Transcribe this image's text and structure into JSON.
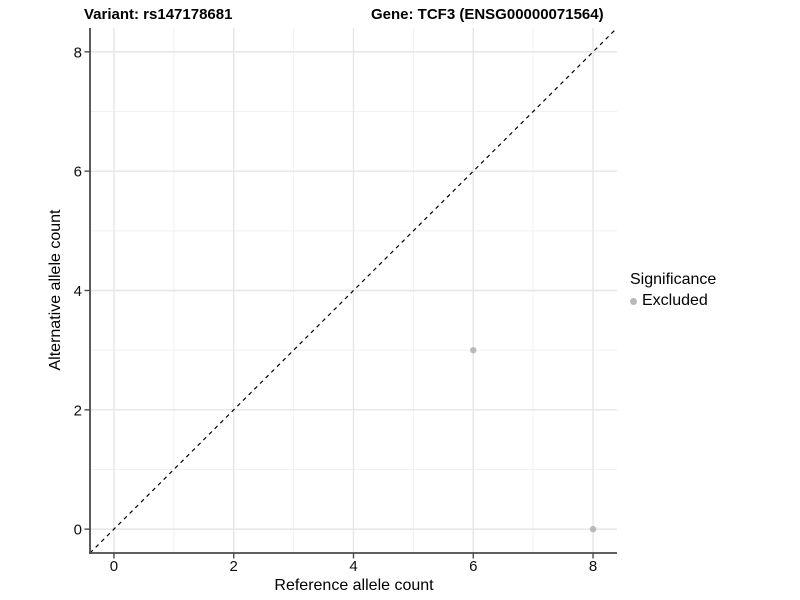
{
  "header": {
    "variant_title": "Variant: rs147178681",
    "gene_title": "Gene: TCF3 (ENSG00000071564)"
  },
  "chart_data": {
    "type": "scatter",
    "xlabel": "Reference allele count",
    "ylabel": "Alternative allele count",
    "xlim": [
      -0.4,
      8.4
    ],
    "ylim": [
      -0.4,
      8.4
    ],
    "xticks": [
      0,
      2,
      4,
      6,
      8
    ],
    "yticks": [
      0,
      2,
      4,
      6,
      8
    ],
    "xticks_minor": [
      1,
      3,
      5,
      7
    ],
    "yticks_minor": [
      1,
      3,
      5,
      7
    ],
    "grid": "major and minor gridlines on white panel",
    "identity_line": {
      "description": "dashed y = x diagonal",
      "style": "dashed",
      "color": "#000000"
    },
    "series": [
      {
        "name": "Excluded",
        "color": "#b9b9b9",
        "marker": "circle",
        "points": [
          {
            "x": 6,
            "y": 3
          },
          {
            "x": 8,
            "y": 0
          }
        ]
      }
    ],
    "legend": {
      "title": "Significance",
      "position": "right",
      "items": [
        {
          "label": "Excluded",
          "color": "#b9b9b9"
        }
      ]
    }
  },
  "colors": {
    "background": "#ffffff",
    "axis_line": "#4a4a4a",
    "tick_mark": "#4a4a4a",
    "grid_major": "#e6e6e6",
    "grid_minor": "#f1f1f1",
    "tick_text": "#0d0d0d",
    "title_text": "#000000",
    "point": "#b9b9b9",
    "identity_line": "#000000"
  }
}
